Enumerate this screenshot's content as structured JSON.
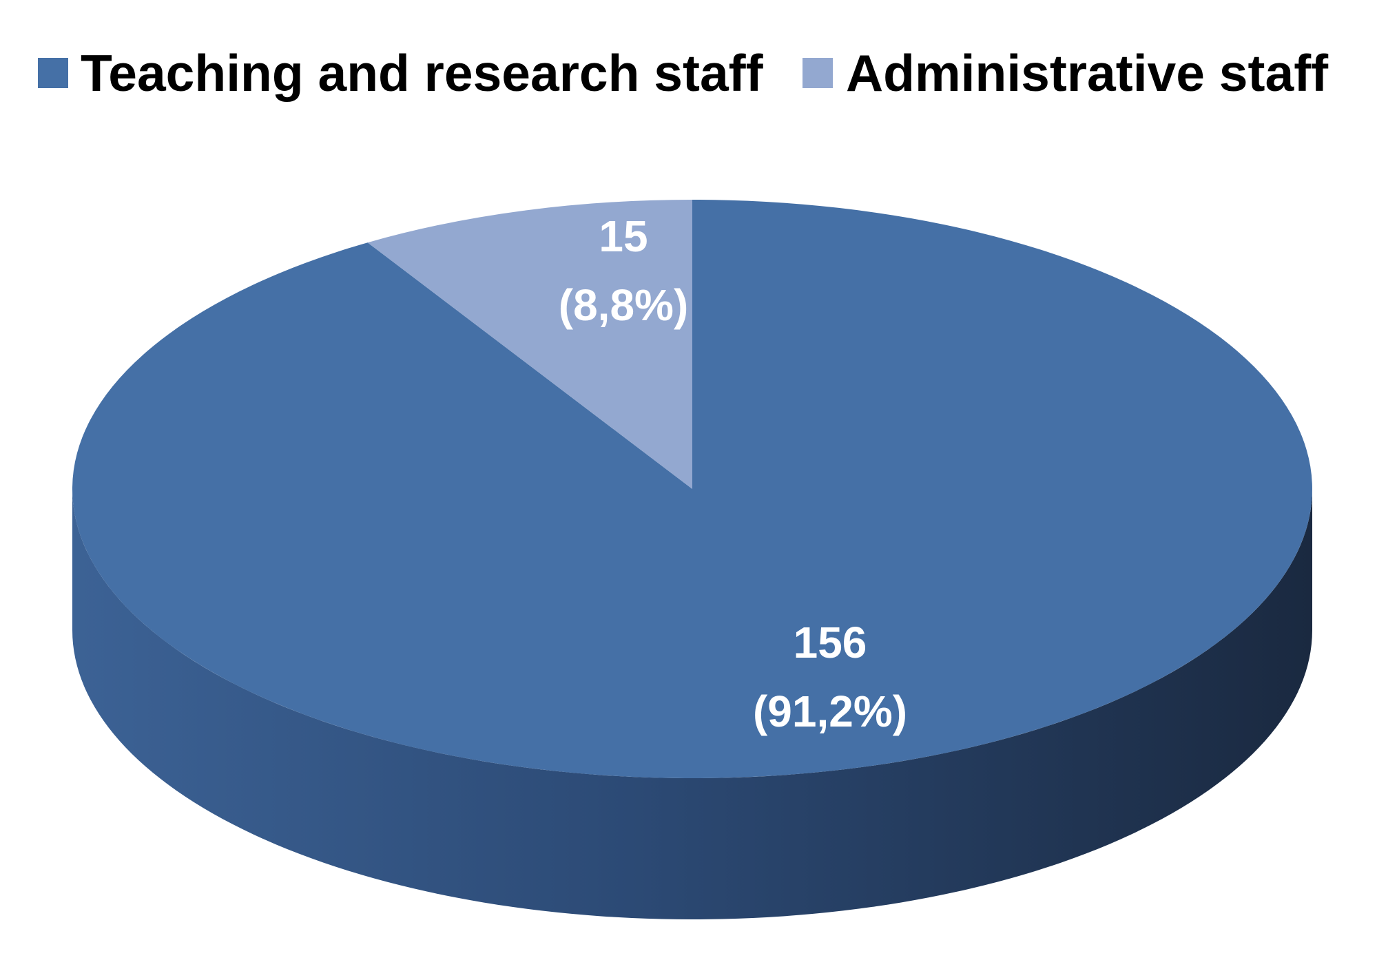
{
  "chart_data": {
    "type": "pie",
    "style": "3d",
    "legend_position": "top",
    "categories": [
      "Teaching and research staff",
      "Administrative staff"
    ],
    "values": [
      156,
      15
    ],
    "percent_labels": [
      "(91,2%)",
      "(8,8%)"
    ],
    "value_labels": [
      "156",
      "15"
    ],
    "colors": [
      "#4570a6",
      "#93a8d0"
    ],
    "side_color_light": "#3c6295",
    "side_color_dark": "#1a2940"
  }
}
